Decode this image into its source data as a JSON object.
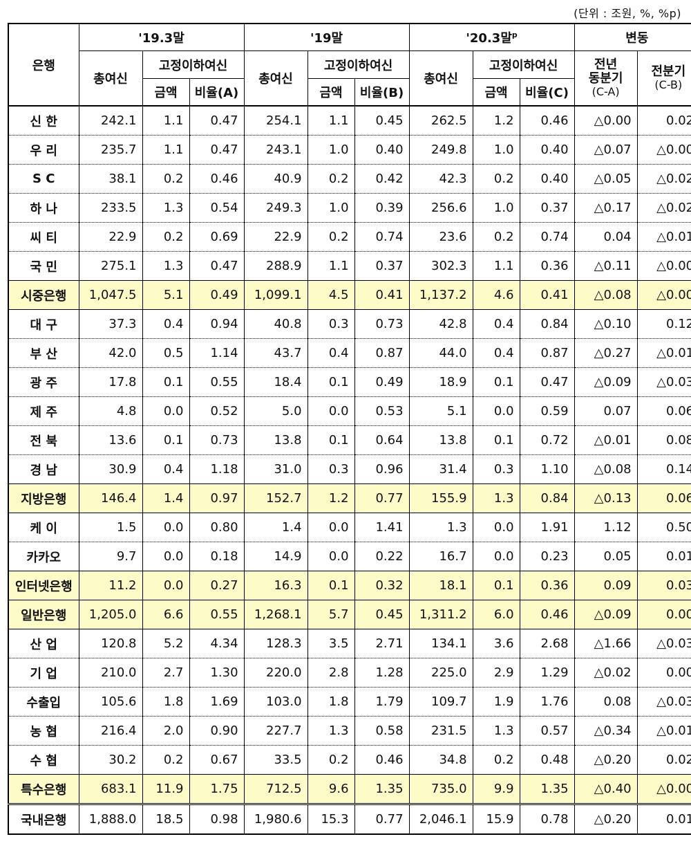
{
  "unit_note": "(단위 : 조원, %, %p)",
  "headers": {
    "bank": "은행",
    "period1": "'19.3말",
    "period2": "'19말",
    "period3": "'20.3말",
    "period3_sup": "p",
    "change": "변동",
    "total_loans": "총여신",
    "npl": "고정이하여신",
    "amount": "금액",
    "ratio_a": "비율(A)",
    "ratio_b": "비율(B)",
    "ratio_c": "비율(C)",
    "yoy_line1": "전년",
    "yoy_line2": "동분기",
    "yoy_line3": "(C-A)",
    "qoq_line1": "전분기",
    "qoq_line2": "(C-B)"
  },
  "rows": [
    {
      "name": "신 한",
      "type": "bank",
      "v": [
        "242.1",
        "1.1",
        "0.47",
        "254.1",
        "1.1",
        "0.45",
        "262.5",
        "1.2",
        "0.46",
        "△0.00",
        "0.02"
      ]
    },
    {
      "name": "우 리",
      "type": "bank",
      "v": [
        "235.7",
        "1.1",
        "0.47",
        "243.1",
        "1.0",
        "0.40",
        "249.8",
        "1.0",
        "0.40",
        "△0.07",
        "△0.00"
      ]
    },
    {
      "name": "S C",
      "type": "bank",
      "v": [
        "38.1",
        "0.2",
        "0.46",
        "40.9",
        "0.2",
        "0.42",
        "42.3",
        "0.2",
        "0.40",
        "△0.05",
        "△0.02"
      ]
    },
    {
      "name": "하 나",
      "type": "bank",
      "v": [
        "233.5",
        "1.3",
        "0.54",
        "249.3",
        "1.0",
        "0.39",
        "256.6",
        "1.0",
        "0.37",
        "△0.17",
        "△0.02"
      ]
    },
    {
      "name": "씨 티",
      "type": "bank",
      "v": [
        "22.9",
        "0.2",
        "0.69",
        "22.9",
        "0.2",
        "0.74",
        "23.6",
        "0.2",
        "0.74",
        "0.04",
        "△0.01"
      ]
    },
    {
      "name": "국 민",
      "type": "bank",
      "v": [
        "275.1",
        "1.3",
        "0.47",
        "288.9",
        "1.1",
        "0.37",
        "302.3",
        "1.1",
        "0.36",
        "△0.11",
        "△0.00"
      ]
    },
    {
      "name": "시중은행",
      "type": "sub",
      "v": [
        "1,047.5",
        "5.1",
        "0.49",
        "1,099.1",
        "4.5",
        "0.41",
        "1,137.2",
        "4.6",
        "0.41",
        "△0.08",
        "△0.00"
      ]
    },
    {
      "name": "대 구",
      "type": "bank",
      "v": [
        "37.3",
        "0.4",
        "0.94",
        "40.8",
        "0.3",
        "0.73",
        "42.8",
        "0.4",
        "0.84",
        "△0.10",
        "0.12"
      ]
    },
    {
      "name": "부 산",
      "type": "bank",
      "v": [
        "42.0",
        "0.5",
        "1.14",
        "43.7",
        "0.4",
        "0.87",
        "44.0",
        "0.4",
        "0.87",
        "△0.27",
        "△0.01"
      ]
    },
    {
      "name": "광 주",
      "type": "bank",
      "v": [
        "17.8",
        "0.1",
        "0.55",
        "18.4",
        "0.1",
        "0.49",
        "18.9",
        "0.1",
        "0.47",
        "△0.09",
        "△0.03"
      ]
    },
    {
      "name": "제 주",
      "type": "bank",
      "v": [
        "4.8",
        "0.0",
        "0.52",
        "5.0",
        "0.0",
        "0.53",
        "5.1",
        "0.0",
        "0.59",
        "0.07",
        "0.06"
      ]
    },
    {
      "name": "전 북",
      "type": "bank",
      "v": [
        "13.6",
        "0.1",
        "0.73",
        "13.8",
        "0.1",
        "0.64",
        "13.8",
        "0.1",
        "0.72",
        "△0.01",
        "0.08"
      ]
    },
    {
      "name": "경 남",
      "type": "bank",
      "v": [
        "30.9",
        "0.4",
        "1.18",
        "31.0",
        "0.3",
        "0.96",
        "31.4",
        "0.3",
        "1.10",
        "△0.08",
        "0.14"
      ]
    },
    {
      "name": "지방은행",
      "type": "sub",
      "v": [
        "146.4",
        "1.4",
        "0.97",
        "152.7",
        "1.2",
        "0.77",
        "155.9",
        "1.3",
        "0.84",
        "△0.13",
        "0.06"
      ]
    },
    {
      "name": "케 이",
      "type": "bank",
      "v": [
        "1.5",
        "0.0",
        "0.80",
        "1.4",
        "0.0",
        "1.41",
        "1.3",
        "0.0",
        "1.91",
        "1.12",
        "0.50"
      ]
    },
    {
      "name": "카카오",
      "type": "bank",
      "v": [
        "9.7",
        "0.0",
        "0.18",
        "14.9",
        "0.0",
        "0.22",
        "16.7",
        "0.0",
        "0.23",
        "0.05",
        "0.01"
      ]
    },
    {
      "name": "인터넷은행",
      "type": "sub",
      "v": [
        "11.2",
        "0.0",
        "0.27",
        "16.3",
        "0.1",
        "0.32",
        "18.1",
        "0.1",
        "0.36",
        "0.09",
        "0.03"
      ]
    },
    {
      "name": "일반은행",
      "type": "sub",
      "v": [
        "1,205.0",
        "6.6",
        "0.55",
        "1,268.1",
        "5.7",
        "0.45",
        "1,311.2",
        "6.0",
        "0.46",
        "△0.09",
        "0.00"
      ]
    },
    {
      "name": "산 업",
      "type": "bank",
      "v": [
        "120.8",
        "5.2",
        "4.34",
        "128.3",
        "3.5",
        "2.71",
        "134.1",
        "3.6",
        "2.68",
        "△1.66",
        "△0.03"
      ]
    },
    {
      "name": "기 업",
      "type": "bank",
      "v": [
        "210.0",
        "2.7",
        "1.30",
        "220.0",
        "2.8",
        "1.28",
        "225.0",
        "2.9",
        "1.29",
        "△0.02",
        "0.00"
      ]
    },
    {
      "name": "수출입",
      "type": "bank",
      "v": [
        "105.6",
        "1.8",
        "1.69",
        "103.0",
        "1.8",
        "1.79",
        "109.7",
        "1.9",
        "1.76",
        "0.08",
        "△0.03"
      ]
    },
    {
      "name": "농 협",
      "type": "bank",
      "v": [
        "216.4",
        "2.0",
        "0.90",
        "227.7",
        "1.3",
        "0.58",
        "231.5",
        "1.3",
        "0.57",
        "△0.34",
        "△0.01"
      ]
    },
    {
      "name": "수 협",
      "type": "bank",
      "v": [
        "30.2",
        "0.2",
        "0.67",
        "33.5",
        "0.2",
        "0.46",
        "34.8",
        "0.2",
        "0.48",
        "△0.20",
        "0.02"
      ]
    },
    {
      "name": "특수은행",
      "type": "sub",
      "v": [
        "683.1",
        "11.9",
        "1.75",
        "712.5",
        "9.6",
        "1.35",
        "735.0",
        "9.9",
        "1.35",
        "△0.40",
        "△0.00"
      ]
    },
    {
      "name": "국내은행",
      "type": "total",
      "v": [
        "1,888.0",
        "18.5",
        "0.98",
        "1,980.6",
        "15.3",
        "0.77",
        "2,046.1",
        "15.9",
        "0.78",
        "△0.20",
        "0.01"
      ]
    }
  ]
}
